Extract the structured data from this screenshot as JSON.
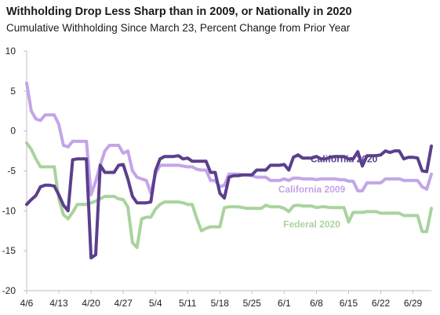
{
  "chart_data": {
    "type": "line",
    "title": "Withholding Drop Less Sharp than in 2009, or Nationally in 2020",
    "subtitle": "Cumulative Withholding Since March 23, Percent Change from Prior Year",
    "xlabel": "",
    "ylabel": "",
    "ylim": [
      -20,
      10
    ],
    "yticks": [
      10,
      5,
      0,
      -5,
      -10,
      -15,
      -20
    ],
    "xticks": [
      "4/6",
      "4/13",
      "4/20",
      "4/27",
      "5/4",
      "5/11",
      "5/18",
      "5/25",
      "6/1",
      "6/8",
      "6/15",
      "6/22",
      "6/29"
    ],
    "x_start": "4/6",
    "x_end": "7/3",
    "grid": false,
    "colors": {
      "california_2020": "#5b3f8c",
      "california_2009": "#c3a5e8",
      "federal_2020": "#a9d39e",
      "axis": "#bfbfbf"
    },
    "series": [
      {
        "name": "California 2020",
        "color": "#5b3f8c",
        "x": [
          "4/6",
          "4/7",
          "4/8",
          "4/9",
          "4/10",
          "4/11",
          "4/12",
          "4/13",
          "4/14",
          "4/15",
          "4/16",
          "4/17",
          "4/18",
          "4/19",
          "4/20",
          "4/21",
          "4/22",
          "4/23",
          "4/24",
          "4/25",
          "4/26",
          "4/27",
          "4/28",
          "4/29",
          "4/30",
          "5/1",
          "5/2",
          "5/3",
          "5/4",
          "5/5",
          "5/6",
          "5/7",
          "5/8",
          "5/9",
          "5/10",
          "5/11",
          "5/12",
          "5/13",
          "5/14",
          "5/15",
          "5/16",
          "5/17",
          "5/18",
          "5/19",
          "5/20",
          "5/21",
          "5/22",
          "5/23",
          "5/24",
          "5/25",
          "5/26",
          "5/27",
          "5/28",
          "5/29",
          "5/30",
          "5/31",
          "6/1",
          "6/2",
          "6/3",
          "6/4",
          "6/5",
          "6/6",
          "6/7",
          "6/8",
          "6/9",
          "6/10",
          "6/11",
          "6/12",
          "6/13",
          "6/14",
          "6/15",
          "6/16",
          "6/17",
          "6/18",
          "6/19",
          "6/20",
          "6/21",
          "6/22",
          "6/23",
          "6/24",
          "6/25",
          "6/26",
          "6/27",
          "6/28",
          "6/29",
          "6/30",
          "7/1",
          "7/2",
          "7/3"
        ],
        "values": [
          -9.2,
          -8.6,
          -8.1,
          -7.0,
          -6.8,
          -6.8,
          -6.9,
          -8.0,
          -9.3,
          -10.0,
          -3.6,
          -3.5,
          -3.5,
          -3.5,
          -15.9,
          -15.5,
          -4.3,
          -5.2,
          -5.2,
          -5.2,
          -4.3,
          -4.2,
          -6.0,
          -8.2,
          -9.0,
          -9.0,
          -9.0,
          -8.9,
          -5.0,
          -3.5,
          -3.2,
          -3.2,
          -3.2,
          -3.1,
          -3.5,
          -3.4,
          -3.8,
          -3.8,
          -3.8,
          -3.8,
          -5.2,
          -5.2,
          -7.8,
          -8.4,
          -5.8,
          -5.6,
          -5.6,
          -5.5,
          -5.5,
          -5.5,
          -4.9,
          -4.9,
          -4.9,
          -4.3,
          -4.3,
          -4.3,
          -4.2,
          -4.9,
          -3.3,
          -3.0,
          -3.4,
          -3.4,
          -3.4,
          -3.2,
          -3.5,
          -3.5,
          -3.3,
          -3.2,
          -3.2,
          -3.2,
          -3.5,
          -3.5,
          -2.6,
          -4.4,
          -3.1,
          -3.1,
          -3.1,
          -3.0,
          -2.5,
          -2.7,
          -2.5,
          -2.5,
          -3.5,
          -3.3,
          -3.3,
          -3.4,
          -5.0,
          -5.1,
          -1.9
        ]
      },
      {
        "name": "California 2009",
        "color": "#c3a5e8",
        "x": [
          "4/6",
          "4/7",
          "4/8",
          "4/9",
          "4/10",
          "4/11",
          "4/12",
          "4/13",
          "4/14",
          "4/15",
          "4/16",
          "4/17",
          "4/18",
          "4/19",
          "4/20",
          "4/21",
          "4/22",
          "4/23",
          "4/24",
          "4/25",
          "4/26",
          "4/27",
          "4/28",
          "4/29",
          "4/30",
          "5/1",
          "5/2",
          "5/3",
          "5/4",
          "5/5",
          "5/6",
          "5/7",
          "5/8",
          "5/9",
          "5/10",
          "5/11",
          "5/12",
          "5/13",
          "5/14",
          "5/15",
          "5/16",
          "5/17",
          "5/18",
          "5/19",
          "5/20",
          "5/21",
          "5/22",
          "5/23",
          "5/24",
          "5/25",
          "5/26",
          "5/27",
          "5/28",
          "5/29",
          "5/30",
          "5/31",
          "6/1",
          "6/2",
          "6/3",
          "6/4",
          "6/5",
          "6/6",
          "6/7",
          "6/8",
          "6/9",
          "6/10",
          "6/11",
          "6/12",
          "6/13",
          "6/14",
          "6/15",
          "6/16",
          "6/17",
          "6/18",
          "6/19",
          "6/20",
          "6/21",
          "6/22",
          "6/23",
          "6/24",
          "6/25",
          "6/26",
          "6/27",
          "6/28",
          "6/29",
          "6/30",
          "7/1",
          "7/2",
          "7/3"
        ],
        "values": [
          6.0,
          2.5,
          1.5,
          1.3,
          2.0,
          2.0,
          2.0,
          0.8,
          -1.8,
          -2.0,
          -1.3,
          -1.3,
          -1.3,
          -1.3,
          -8.0,
          -6.3,
          -4.3,
          -2.5,
          -1.8,
          -1.8,
          -1.8,
          -2.8,
          -2.5,
          -5.0,
          -5.8,
          -6.0,
          -6.2,
          -7.8,
          -5.4,
          -4.3,
          -4.3,
          -4.3,
          -4.3,
          -4.3,
          -4.4,
          -4.5,
          -4.5,
          -4.8,
          -4.9,
          -4.9,
          -6.2,
          -6.2,
          -7.0,
          -6.8,
          -5.4,
          -5.4,
          -5.4,
          -5.5,
          -5.5,
          -5.6,
          -5.8,
          -5.8,
          -5.8,
          -6.2,
          -6.2,
          -6.2,
          -6.0,
          -6.2,
          -5.9,
          -5.9,
          -6.0,
          -6.0,
          -6.0,
          -6.1,
          -6.0,
          -6.0,
          -6.0,
          -6.0,
          -6.1,
          -6.1,
          -6.3,
          -6.3,
          -7.5,
          -7.5,
          -6.5,
          -6.5,
          -6.5,
          -6.5,
          -6.0,
          -6.0,
          -6.0,
          -6.0,
          -6.2,
          -6.2,
          -6.2,
          -6.2,
          -7.0,
          -7.3,
          -5.4
        ]
      },
      {
        "name": "Federal 2020",
        "color": "#a9d39e",
        "x": [
          "4/6",
          "4/7",
          "4/8",
          "4/9",
          "4/10",
          "4/11",
          "4/12",
          "4/13",
          "4/14",
          "4/15",
          "4/16",
          "4/17",
          "4/18",
          "4/19",
          "4/20",
          "4/21",
          "4/22",
          "4/23",
          "4/24",
          "4/25",
          "4/26",
          "4/27",
          "4/28",
          "4/29",
          "4/30",
          "5/1",
          "5/2",
          "5/3",
          "5/4",
          "5/5",
          "5/6",
          "5/7",
          "5/8",
          "5/9",
          "5/10",
          "5/11",
          "5/12",
          "5/13",
          "5/14",
          "5/15",
          "5/16",
          "5/17",
          "5/18",
          "5/19",
          "5/20",
          "5/21",
          "5/22",
          "5/23",
          "5/24",
          "5/25",
          "5/26",
          "5/27",
          "5/28",
          "5/29",
          "5/30",
          "5/31",
          "6/1",
          "6/2",
          "6/3",
          "6/4",
          "6/5",
          "6/6",
          "6/7",
          "6/8",
          "6/9",
          "6/10",
          "6/11",
          "6/12",
          "6/13",
          "6/14",
          "6/15",
          "6/16",
          "6/17",
          "6/18",
          "6/19",
          "6/20",
          "6/21",
          "6/22",
          "6/23",
          "6/24",
          "6/25",
          "6/26",
          "6/27",
          "6/28",
          "6/29",
          "6/30",
          "7/1",
          "7/2",
          "7/3"
        ],
        "values": [
          -1.5,
          -2.3,
          -3.5,
          -4.5,
          -4.5,
          -4.5,
          -4.5,
          -8.5,
          -10.5,
          -11.0,
          -10.2,
          -9.2,
          -9.2,
          -9.2,
          -9.0,
          -8.8,
          -8.5,
          -8.2,
          -8.2,
          -8.2,
          -8.5,
          -8.6,
          -9.5,
          -14.0,
          -14.6,
          -11.0,
          -10.8,
          -10.8,
          -9.8,
          -9.2,
          -8.9,
          -8.9,
          -8.9,
          -8.9,
          -9.0,
          -9.2,
          -9.2,
          -11.0,
          -12.5,
          -12.2,
          -12.0,
          -12.0,
          -12.0,
          -9.6,
          -9.5,
          -9.5,
          -9.5,
          -9.6,
          -9.7,
          -9.7,
          -9.7,
          -9.7,
          -9.3,
          -9.5,
          -9.5,
          -9.5,
          -9.7,
          -10.1,
          -9.4,
          -9.3,
          -9.4,
          -9.4,
          -9.4,
          -9.6,
          -9.5,
          -9.5,
          -9.6,
          -9.6,
          -9.6,
          -9.6,
          -11.4,
          -10.2,
          -10.2,
          -10.2,
          -10.1,
          -10.1,
          -10.1,
          -10.3,
          -10.3,
          -10.3,
          -10.3,
          -10.3,
          -10.6,
          -10.6,
          -10.6,
          -10.6,
          -12.6,
          -12.6,
          -9.7
        ]
      }
    ],
    "series_labels": [
      {
        "text": "California 2020",
        "color": "#5b3f8c"
      },
      {
        "text": "California 2009",
        "color": "#c3a5e8"
      },
      {
        "text": "Federal 2020",
        "color": "#a9d39e"
      }
    ]
  }
}
